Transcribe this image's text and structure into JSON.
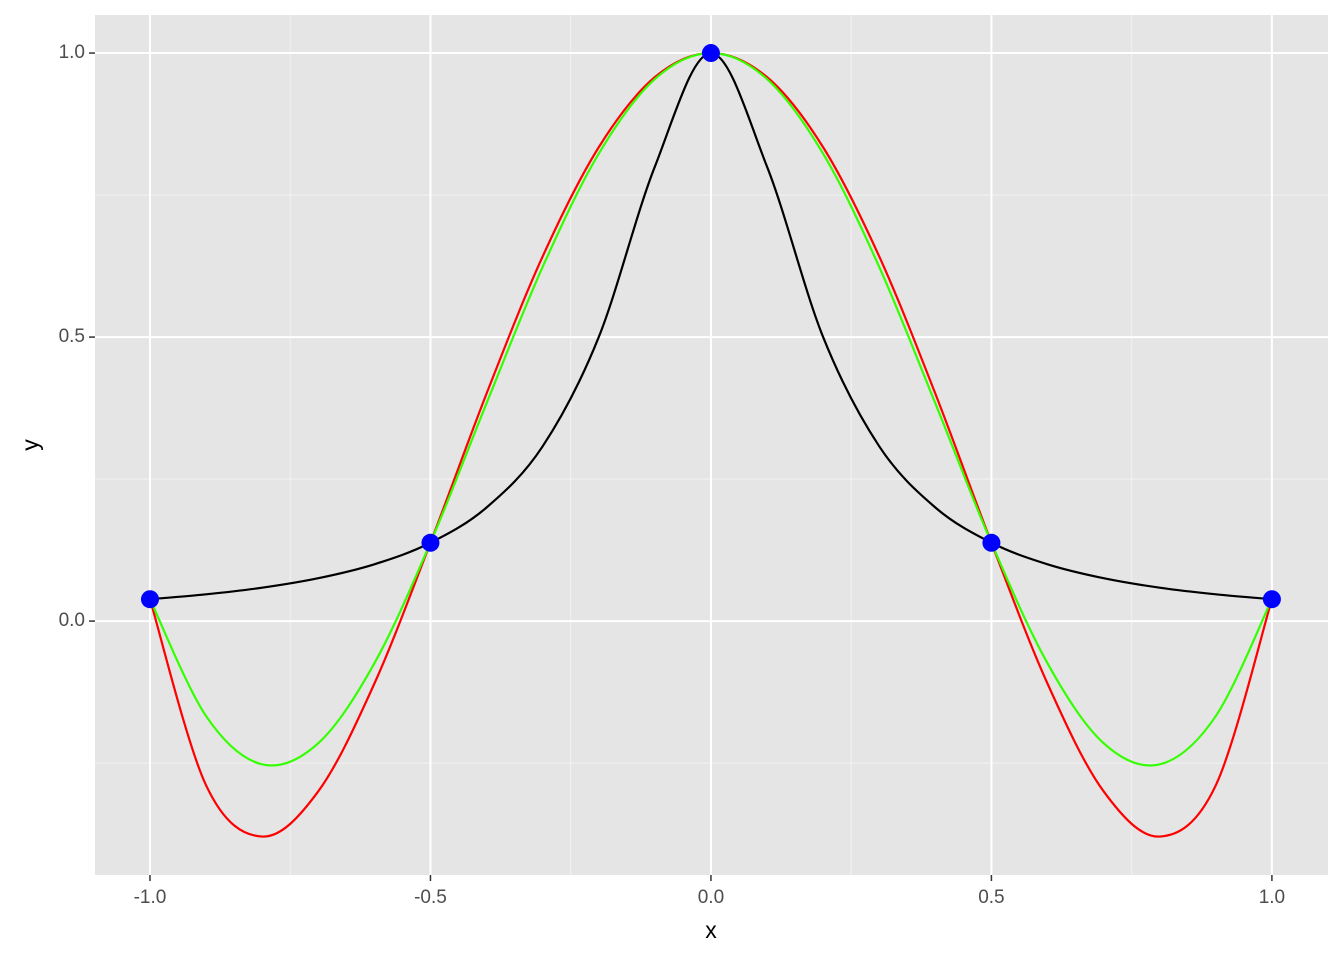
{
  "chart_data": {
    "type": "line",
    "xlabel": "x",
    "ylabel": "y",
    "xlim": [
      -1.098,
      1.1
    ],
    "ylim": [
      -0.447,
      1.067
    ],
    "xticks": [
      {
        "value": -1,
        "label": "-1.0"
      },
      -0.5,
      {
        "value": 0,
        "label": "0.0"
      },
      0.5,
      {
        "value": 1,
        "label": "1.0"
      }
    ],
    "yticks": [
      {
        "value": 0,
        "label": "0.0"
      },
      0.5,
      {
        "value": 1,
        "label": "1.0"
      }
    ],
    "grid": true,
    "x": [
      -1,
      -0.9,
      -0.8,
      -0.7,
      -0.6,
      -0.5,
      -0.4,
      -0.3,
      -0.2,
      -0.1,
      0,
      0.1,
      0.2,
      0.3,
      0.4,
      0.5,
      0.6,
      0.7,
      0.8,
      0.9,
      1
    ],
    "series": [
      {
        "color": "#ff0000",
        "values": [
          0.0385,
          -0.2891,
          -0.3793,
          -0.2997,
          -0.1101,
          0.1379,
          0.4005,
          0.6419,
          0.8342,
          0.9576,
          1,
          0.9576,
          0.8342,
          0.6419,
          0.4005,
          0.1379,
          -0.1101,
          -0.2997,
          -0.3793,
          -0.2891,
          0.0385
        ]
      },
      {
        "color": "#33ff00",
        "values": [
          0.0385,
          -0.1672,
          -0.2522,
          -0.2149,
          -0.0743,
          0.1379,
          0.3834,
          0.6234,
          0.8228,
          0.9542,
          1,
          0.9542,
          0.8228,
          0.6234,
          0.3834,
          0.1379,
          -0.0743,
          -0.2149,
          -0.2522,
          -0.1672,
          0.0385
        ]
      },
      {
        "color": "#000000",
        "values": [
          0.0385,
          0.0471,
          0.0588,
          0.0755,
          0.1,
          0.1379,
          0.2,
          0.3077,
          0.5,
          0.8,
          1,
          0.8,
          0.5,
          0.3077,
          0.2,
          0.1379,
          0.1,
          0.0755,
          0.0588,
          0.0471,
          0.0385
        ]
      }
    ],
    "points": {
      "color": "#0000ff",
      "x": [
        -1,
        -0.5,
        0,
        0.5,
        1
      ],
      "y": [
        0.0385,
        0.1379,
        1,
        0.1379,
        0.0385
      ]
    }
  }
}
